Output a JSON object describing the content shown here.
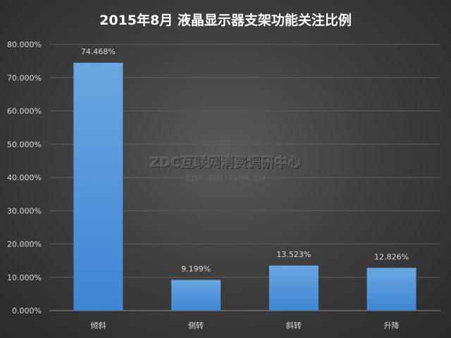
{
  "title": "2015年8月  液晶显示器支架功能关注比例",
  "watermark": {
    "main": "ZDC互联网消费调研中心",
    "sub": "ZDC.ZOL.COM.CN"
  },
  "colors": {
    "bar_top": "#6aa6e0",
    "bar_bottom": "#3d86d4",
    "text": "#d9d9d9",
    "grid": "#5c5c5c"
  },
  "chart_data": {
    "type": "bar",
    "title": "2015年8月  液晶显示器支架功能关注比例",
    "categories": [
      "倾斜",
      "侧转",
      "斜转",
      "升降"
    ],
    "values": [
      74.468,
      9.199,
      13.523,
      12.826
    ],
    "data_labels": [
      "74.468%",
      "9.199%",
      "13.523%",
      "12.826%"
    ],
    "ylim": [
      0,
      80
    ],
    "yticks": [
      0,
      10,
      20,
      30,
      40,
      50,
      60,
      70,
      80
    ],
    "ytick_labels": [
      "0.000%",
      "10.000%",
      "20.000%",
      "30.000%",
      "40.000%",
      "50.000%",
      "60.000%",
      "70.000%",
      "80.000%"
    ],
    "grid": true,
    "legend": "none"
  }
}
